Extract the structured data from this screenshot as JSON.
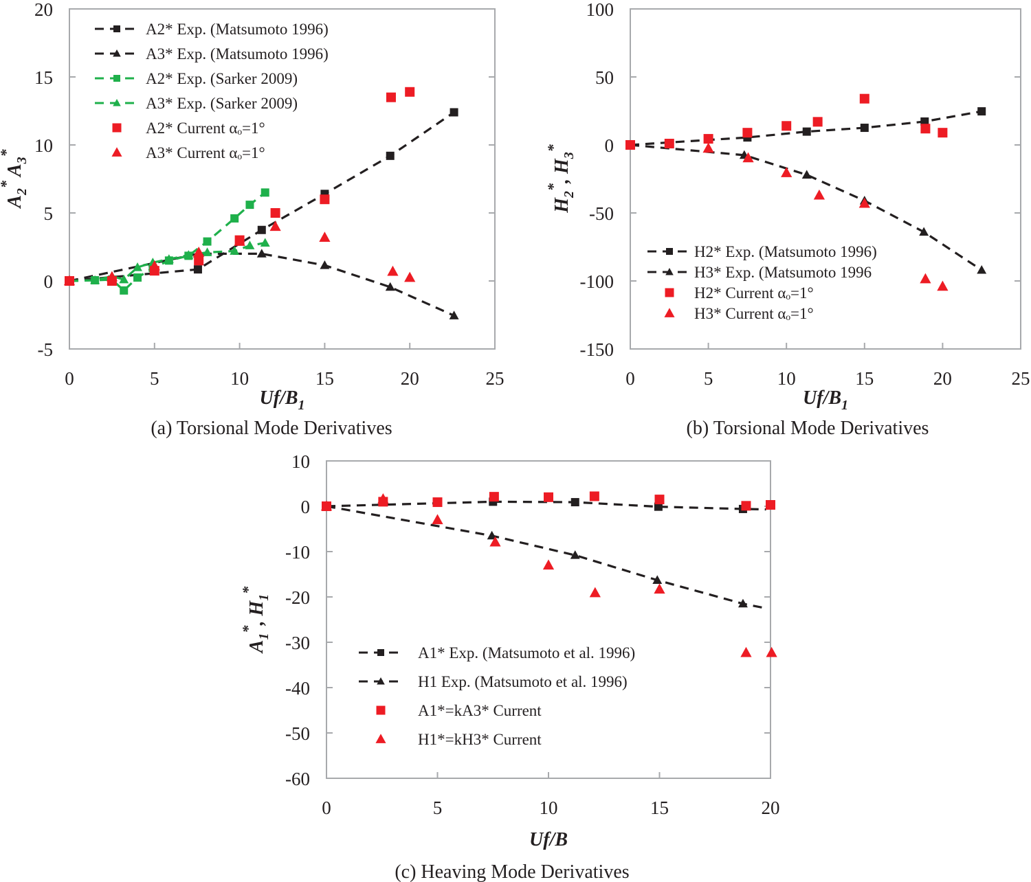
{
  "colors": {
    "black": "#231f20",
    "green": "#1fb04b",
    "red": "#ed1c24",
    "axis": "#a7a9ac"
  },
  "chart_data": [
    {
      "id": "a",
      "type": "scatter",
      "caption": "(a)   Torsional Mode Derivatives",
      "xlabel": "Uf/B",
      "xlabel_sub": "1",
      "ylabel_parts": [
        "A",
        "2",
        "*",
        " A",
        "3",
        "*"
      ],
      "xlim": [
        0,
        25
      ],
      "ylim": [
        -5,
        20
      ],
      "xticks": [
        0,
        5,
        10,
        15,
        20,
        25
      ],
      "yticks": [
        -5,
        0,
        5,
        10,
        15,
        20
      ],
      "grid": false,
      "legend_position": "top-left",
      "series": [
        {
          "name": "A2* Exp. (Matsumoto 1996)",
          "color": "black",
          "marker": "square",
          "line": "dashed",
          "x": [
            0,
            7.55,
            11.3,
            15.0,
            18.85,
            22.6
          ],
          "y": [
            0,
            0.85,
            3.75,
            6.4,
            9.2,
            12.4
          ]
        },
        {
          "name": "A3* Exp. (Matsumoto 1996)",
          "color": "black",
          "marker": "triangle",
          "line": "dashed",
          "x": [
            0,
            7.55,
            11.3,
            15.0,
            18.85,
            22.6
          ],
          "y": [
            0,
            2.0,
            2.0,
            1.15,
            -0.45,
            -2.55
          ]
        },
        {
          "name": "A2* Exp. (Sarker 2009)",
          "color": "green",
          "marker": "square",
          "line": "dashed",
          "x": [
            0,
            1.5,
            2.5,
            3.2,
            4.0,
            4.9,
            5.85,
            7.0,
            8.1,
            9.7,
            10.6,
            11.5
          ],
          "y": [
            0,
            0.05,
            0.1,
            -0.7,
            0.25,
            0.95,
            1.5,
            1.85,
            2.9,
            4.6,
            5.6,
            6.5
          ]
        },
        {
          "name": "A3* Exp. (Sarker 2009)",
          "color": "green",
          "marker": "triangle",
          "line": "dashed",
          "x": [
            0,
            1.5,
            2.5,
            3.2,
            4.0,
            4.9,
            5.85,
            7.0,
            8.1,
            9.7,
            10.6,
            11.5
          ],
          "y": [
            0,
            0.05,
            0.35,
            0.1,
            1.0,
            1.35,
            1.6,
            1.9,
            2.1,
            2.2,
            2.6,
            2.8
          ]
        },
        {
          "name": "A2* Current αₒ=1°",
          "color": "red",
          "marker": "square",
          "line": "none",
          "x": [
            0,
            2.5,
            5.0,
            7.6,
            10.0,
            12.1,
            15.0,
            18.9,
            20.0
          ],
          "y": [
            0,
            0.0,
            0.75,
            1.5,
            3.0,
            5.0,
            6.0,
            13.5,
            13.9
          ]
        },
        {
          "name": "A3* Current αₒ=1°",
          "color": "red",
          "marker": "triangle",
          "line": "none",
          "x": [
            0,
            2.5,
            5.0,
            7.6,
            10.0,
            12.1,
            15.0,
            19.0,
            20.0
          ],
          "y": [
            0,
            0.3,
            1.1,
            2.1,
            2.9,
            4.0,
            3.2,
            0.7,
            0.25
          ]
        }
      ]
    },
    {
      "id": "b",
      "type": "scatter",
      "caption": "(b)   Torsional Mode Derivatives",
      "xlabel": "Uf/B",
      "xlabel_sub": "1",
      "ylabel_parts": [
        "H",
        "2",
        "*",
        ", H",
        "3",
        "*"
      ],
      "xlim": [
        0,
        25
      ],
      "ylim": [
        -150,
        100
      ],
      "xticks": [
        0,
        5,
        10,
        15,
        20,
        25
      ],
      "yticks": [
        -150,
        -100,
        -50,
        0,
        50,
        100
      ],
      "grid": false,
      "legend_position": "bottom-left",
      "series": [
        {
          "name": "H2* Exp. (Matsumoto 1996)",
          "color": "black",
          "marker": "square",
          "line": "dashed",
          "x": [
            0,
            7.5,
            11.3,
            15.0,
            18.85,
            22.5
          ],
          "y": [
            0,
            5.5,
            9.8,
            12.6,
            17.2,
            24.7
          ]
        },
        {
          "name": "H3* Exp. (Matsumoto 1996",
          "color": "black",
          "marker": "triangle",
          "line": "dashed",
          "x": [
            0,
            7.3,
            11.3,
            15.0,
            18.8,
            22.5
          ],
          "y": [
            0,
            -7.5,
            -22,
            -41,
            -64,
            -92
          ]
        },
        {
          "name": "H2* Current αₒ=1°",
          "color": "red",
          "marker": "square",
          "line": "none",
          "x": [
            0,
            2.5,
            5.0,
            7.5,
            10.0,
            12.0,
            15.0,
            18.9,
            20.0
          ],
          "y": [
            0,
            1,
            4.5,
            9,
            14,
            17,
            34,
            12,
            9
          ]
        },
        {
          "name": "H3* Current αₒ=1°",
          "color": "red",
          "marker": "triangle",
          "line": "none",
          "x": [
            5.0,
            7.55,
            10.0,
            12.1,
            15.0,
            18.9,
            20.0
          ],
          "y": [
            -2.5,
            -9.6,
            -20.5,
            -37,
            -43,
            -98.5,
            -104
          ]
        }
      ]
    },
    {
      "id": "c",
      "type": "scatter",
      "caption": "(c) Heaving Mode Derivatives",
      "xlabel": "Uf/B",
      "xlabel_sub": "",
      "ylabel_parts": [
        "A",
        "1",
        "*",
        ", H",
        "1",
        "*"
      ],
      "xlim": [
        0,
        20
      ],
      "ylim": [
        -60,
        10
      ],
      "xticks": [
        0,
        5,
        10,
        15,
        20
      ],
      "yticks": [
        -60,
        -50,
        -40,
        -30,
        -20,
        -10,
        0,
        10
      ],
      "grid": false,
      "legend_position": "bottom-left",
      "series": [
        {
          "name": "A1* Exp. (Matsumoto et al. 1996)",
          "color": "black",
          "marker": "square",
          "line": "dashed",
          "x": [
            0,
            7.5,
            11.2,
            14.95,
            18.76
          ],
          "y": [
            0,
            1.0,
            0.9,
            -0.1,
            -0.6
          ],
          "line_end": [
            19.8,
            -0.7
          ]
        },
        {
          "name": "H1 Exp. (Matsumoto et al. 1996)",
          "color": "black",
          "marker": "triangle",
          "line": "dashed",
          "x": [
            0,
            7.45,
            11.2,
            14.9,
            18.76
          ],
          "y": [
            0,
            -6.5,
            -10.8,
            -16.3,
            -21.5
          ],
          "line_end": [
            19.8,
            -22.5
          ]
        },
        {
          "name": "A1*=kA3* Current",
          "color": "red",
          "marker": "square",
          "line": "none",
          "x": [
            0,
            2.55,
            5.0,
            7.55,
            10.0,
            12.07,
            15.0,
            18.9,
            20.0
          ],
          "y": [
            0,
            1.0,
            0.9,
            2.1,
            2.0,
            2.2,
            1.5,
            0.1,
            0.3
          ]
        },
        {
          "name": "H1*=kH3* Current",
          "color": "red",
          "marker": "triangle",
          "line": "none",
          "x": [
            0,
            2.55,
            5.0,
            7.6,
            10.0,
            12.1,
            15.0,
            18.9,
            20.05
          ],
          "y": [
            0,
            1.6,
            -3.0,
            -7.9,
            -13.0,
            -19.1,
            -18.3,
            -32.3,
            -32.3
          ]
        }
      ]
    }
  ]
}
